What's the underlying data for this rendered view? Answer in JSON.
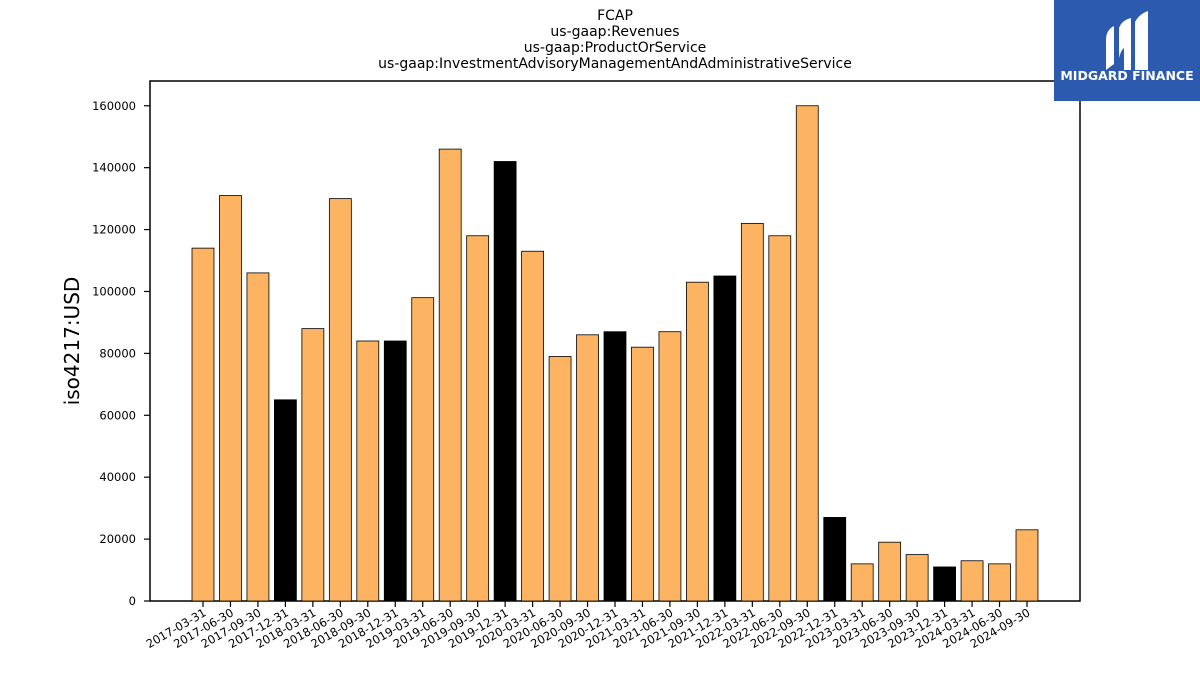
{
  "logo": {
    "text": "MIDGARD FINANCE",
    "background": "#2B5AAE"
  },
  "chart_data": {
    "type": "bar",
    "title_lines": [
      "FCAP",
      "us-gaap:Revenues",
      "us-gaap:ProductOrService",
      "us-gaap:InvestmentAdvisoryManagementAndAdministrativeService"
    ],
    "ylabel": "iso4217:USD",
    "xlabel": "",
    "ylim": [
      0,
      168000
    ],
    "yticks": [
      0,
      20000,
      40000,
      60000,
      80000,
      100000,
      120000,
      140000,
      160000
    ],
    "categories": [
      "2017-03-31",
      "2017-06-30",
      "2017-09-30",
      "2017-12-31",
      "2018-03-31",
      "2018-06-30",
      "2018-09-30",
      "2018-12-31",
      "2019-03-31",
      "2019-06-30",
      "2019-09-30",
      "2019-12-31",
      "2020-03-31",
      "2020-06-30",
      "2020-09-30",
      "2020-12-31",
      "2021-03-31",
      "2021-06-30",
      "2021-09-30",
      "2021-12-31",
      "2022-03-31",
      "2022-06-30",
      "2022-09-30",
      "2022-12-31",
      "2023-03-31",
      "2023-06-30",
      "2023-09-30",
      "2023-12-31",
      "2024-03-31",
      "2024-06-30",
      "2024-09-30"
    ],
    "values": [
      114000,
      131000,
      106000,
      65000,
      88000,
      130000,
      84000,
      84000,
      98000,
      146000,
      118000,
      142000,
      113000,
      79000,
      86000,
      87000,
      82000,
      87000,
      103000,
      105000,
      122000,
      118000,
      160000,
      27000,
      12000,
      19000,
      15000,
      11000,
      13000,
      12000,
      23000
    ],
    "bar_colors": [
      "#FDB462",
      "#FDB462",
      "#FDB462",
      "#000000",
      "#FDB462",
      "#FDB462",
      "#FDB462",
      "#000000",
      "#FDB462",
      "#FDB462",
      "#FDB462",
      "#000000",
      "#FDB462",
      "#FDB462",
      "#FDB462",
      "#000000",
      "#FDB462",
      "#FDB462",
      "#FDB462",
      "#000000",
      "#FDB462",
      "#FDB462",
      "#FDB462",
      "#000000",
      "#FDB462",
      "#FDB462",
      "#FDB462",
      "#000000",
      "#FDB462",
      "#FDB462",
      "#FDB462"
    ],
    "grid": false,
    "legend": "none"
  }
}
